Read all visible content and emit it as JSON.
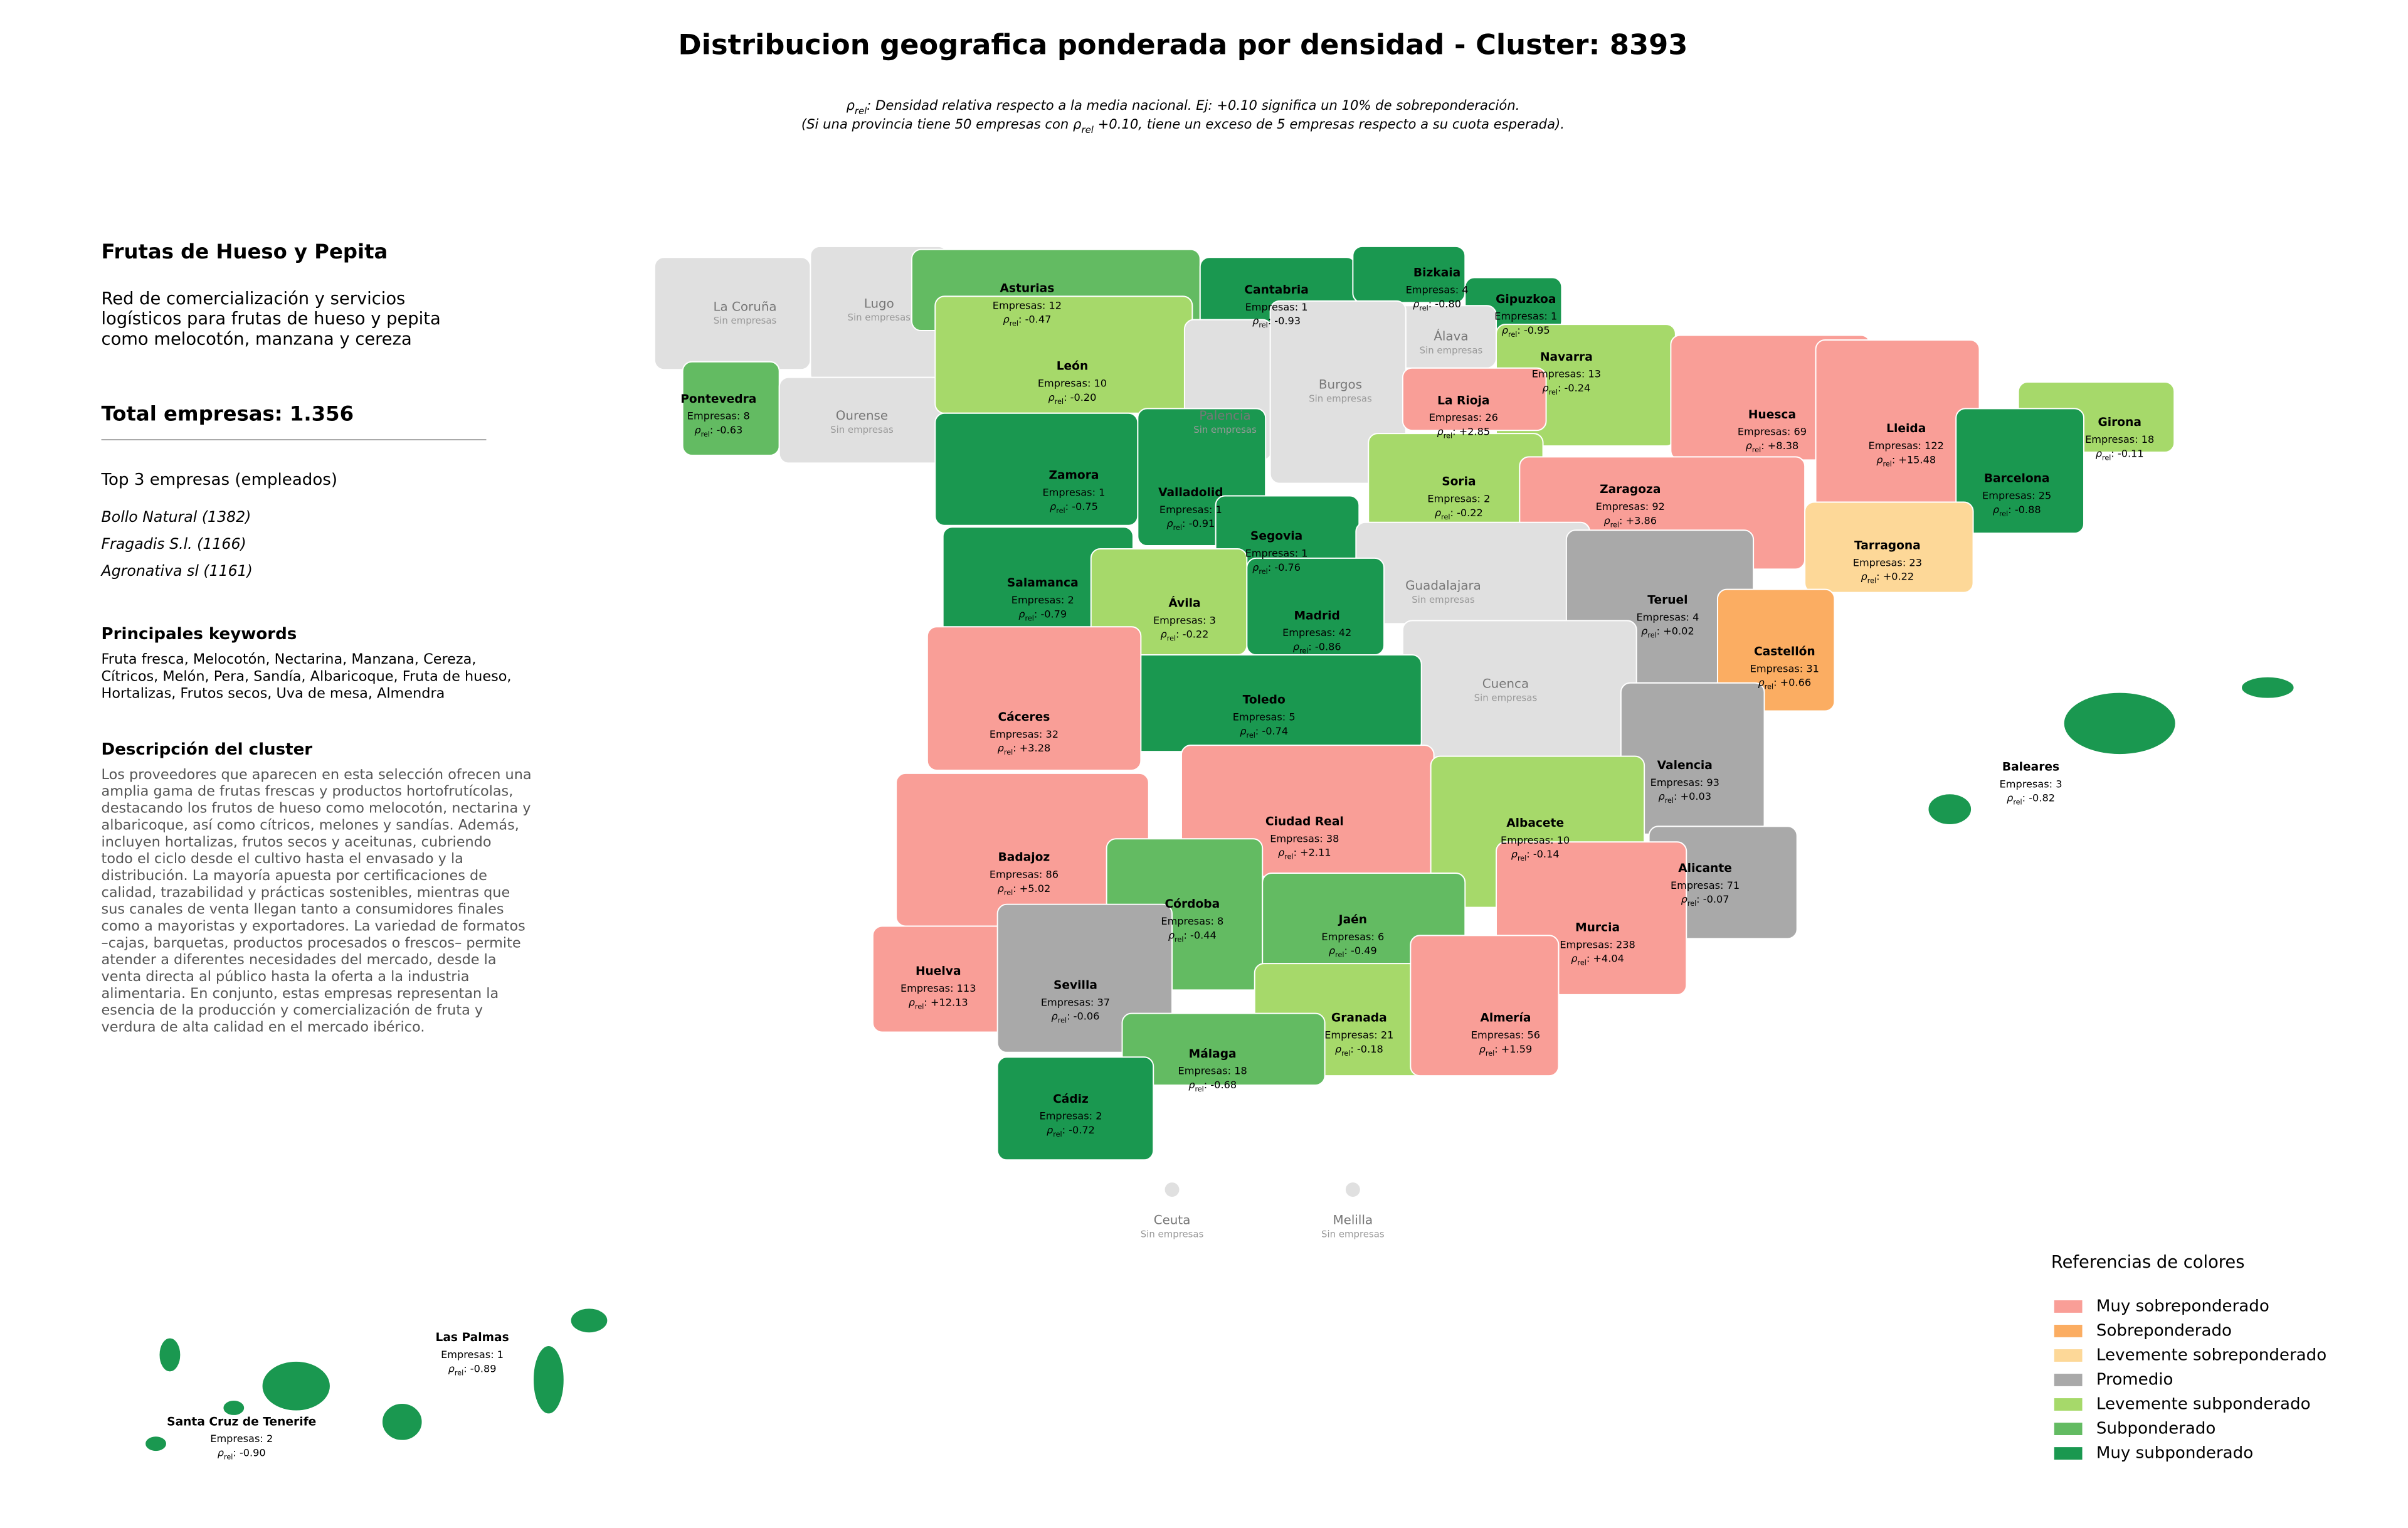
{
  "title": "Distribucion geografica ponderada por densidad - Cluster: 8393",
  "subtitle": [
    [
      "ρ",
      "rel",
      ": Densidad relativa respecto a la media nacional. Ej: +0.10 significa un 10% de sobreponderación."
    ],
    [
      "(Si una provincia tiene 50 empresas con ρ",
      "rel",
      " +0.10, tiene un exceso de 5 empresas respecto a su cuota esperada)."
    ]
  ],
  "panel": {
    "heading": "Frutas de Hueso y Pepita",
    "intro": [
      "Red de comercialización y servicios",
      "logísticos para frutas de hueso y pepita",
      "como melocotón, manzana y cereza"
    ],
    "total": "Total empresas: 1.356",
    "top_title": "Top 3 empresas (empleados)",
    "top": [
      "Bollo Natural (1382)",
      "Fragadis S.l. (1166)",
      "Agronativa sl (1161)"
    ],
    "keywords_title": "Principales keywords",
    "keywords": [
      "Fruta fresca, Melocotón, Nectarina, Manzana, Cereza,",
      "Cítricos, Melón, Pera, Sandía, Albaricoque, Fruta de hueso,",
      "Hortalizas, Frutos secos, Uva de mesa, Almendra"
    ],
    "description_title": "Descripción del cluster",
    "description": [
      "Los proveedores que aparecen en esta selección ofrecen una",
      "amplia gama de frutas frescas y productos hortofrutícolas,",
      "destacando los frutos de hueso como melocotón, nectarina y",
      "albaricoque, así como cítricos, melones y sandías. Además,",
      "incluyen hortalizas, frutos secos y aceitunas, cubriendo",
      "todo el ciclo desde el cultivo hasta el envasado y la",
      "distribución. La mayoría apuesta por certificaciones de",
      "calidad, trazabilidad y prácticas sostenibles, mientras que",
      "sus canales de venta llegan tanto a consumidores finales",
      "como a mayoristas y exportadores. La variedad de formatos",
      "–cajas, barquetas, productos procesados o frescos– permite",
      "atender a diferentes necesidades del mercado, desde la",
      "venta directa al público hasta la oferta a la industria",
      "alimentaria. En conjunto, estas empresas representan la",
      "esencia de la producción y comercialización de fruta y",
      "verdura de alta calidad en el mercado ibérico."
    ]
  },
  "map": {
    "companies_prefix": "Empresas",
    "rho_symbol": "ρ",
    "rho_subscript": "rel",
    "separator": ": ",
    "no_companies_label": "Sin empresas",
    "no_companies_color": "#e0e0e0",
    "provinces": [
      {
        "name": "La Coruña"
      },
      {
        "name": "Lugo"
      },
      {
        "name": "Asturias",
        "companies": 12,
        "rho": -0.47,
        "rho_label": "-0.47",
        "category": 5
      },
      {
        "name": "Cantabria",
        "companies": 1,
        "rho": -0.93,
        "rho_label": "-0.93",
        "category": 6
      },
      {
        "name": "Bizkaia",
        "companies": 4,
        "rho": -0.8,
        "rho_label": "-0.80",
        "category": 6
      },
      {
        "name": "Gipuzkoa",
        "companies": 1,
        "rho": -0.95,
        "rho_label": "-0.95",
        "category": 6
      },
      {
        "name": "Álava"
      },
      {
        "name": "Navarra",
        "companies": 13,
        "rho": -0.24,
        "rho_label": "-0.24",
        "category": 4
      },
      {
        "name": "Pontevedra",
        "companies": 8,
        "rho": -0.63,
        "rho_label": "-0.63",
        "category": 5
      },
      {
        "name": "Ourense"
      },
      {
        "name": "León",
        "companies": 10,
        "rho": -0.2,
        "rho_label": "-0.20",
        "category": 4
      },
      {
        "name": "Palencia"
      },
      {
        "name": "Burgos"
      },
      {
        "name": "La Rioja",
        "companies": 26,
        "rho": 2.85,
        "rho_label": "+2.85",
        "category": 0
      },
      {
        "name": "Huesca",
        "companies": 69,
        "rho": 8.38,
        "rho_label": "+8.38",
        "category": 0
      },
      {
        "name": "Lleida",
        "companies": 122,
        "rho": 15.48,
        "rho_label": "+15.48",
        "category": 0
      },
      {
        "name": "Girona",
        "companies": 18,
        "rho": -0.11,
        "rho_label": "-0.11",
        "category": 4
      },
      {
        "name": "Barcelona",
        "companies": 25,
        "rho": -0.88,
        "rho_label": "-0.88",
        "category": 6
      },
      {
        "name": "Zamora",
        "companies": 1,
        "rho": -0.75,
        "rho_label": "-0.75",
        "category": 6
      },
      {
        "name": "Valladolid",
        "companies": 1,
        "rho": -0.91,
        "rho_label": "-0.91",
        "category": 6
      },
      {
        "name": "Soria",
        "companies": 2,
        "rho": -0.22,
        "rho_label": "-0.22",
        "category": 4
      },
      {
        "name": "Zaragoza",
        "companies": 92,
        "rho": 3.86,
        "rho_label": "+3.86",
        "category": 0
      },
      {
        "name": "Segovia",
        "companies": 1,
        "rho": -0.76,
        "rho_label": "-0.76",
        "category": 6
      },
      {
        "name": "Tarragona",
        "companies": 23,
        "rho": 0.22,
        "rho_label": "+0.22",
        "category": 2
      },
      {
        "name": "Salamanca",
        "companies": 2,
        "rho": -0.79,
        "rho_label": "-0.79",
        "category": 6
      },
      {
        "name": "Guadalajara"
      },
      {
        "name": "Teruel",
        "companies": 4,
        "rho": 0.02,
        "rho_label": "+0.02",
        "category": 3
      },
      {
        "name": "Ávila",
        "companies": 3,
        "rho": -0.22,
        "rho_label": "-0.22",
        "category": 4
      },
      {
        "name": "Madrid",
        "companies": 42,
        "rho": -0.86,
        "rho_label": "-0.86",
        "category": 6
      },
      {
        "name": "Castellón",
        "companies": 31,
        "rho": 0.66,
        "rho_label": "+0.66",
        "category": 1
      },
      {
        "name": "Cuenca"
      },
      {
        "name": "Toledo",
        "companies": 5,
        "rho": -0.74,
        "rho_label": "-0.74",
        "category": 6
      },
      {
        "name": "Cáceres",
        "companies": 32,
        "rho": 3.28,
        "rho_label": "+3.28",
        "category": 0
      },
      {
        "name": "Valencia",
        "companies": 93,
        "rho": 0.03,
        "rho_label": "+0.03",
        "category": 3
      },
      {
        "name": "Baleares",
        "companies": 3,
        "rho": -0.82,
        "rho_label": "-0.82",
        "category": 6
      },
      {
        "name": "Ciudad Real",
        "companies": 38,
        "rho": 2.11,
        "rho_label": "+2.11",
        "category": 0
      },
      {
        "name": "Albacete",
        "companies": 10,
        "rho": -0.14,
        "rho_label": "-0.14",
        "category": 4
      },
      {
        "name": "Badajoz",
        "companies": 86,
        "rho": 5.02,
        "rho_label": "+5.02",
        "category": 0
      },
      {
        "name": "Alicante",
        "companies": 71,
        "rho": -0.07,
        "rho_label": "-0.07",
        "category": 3
      },
      {
        "name": "Córdoba",
        "companies": 8,
        "rho": -0.44,
        "rho_label": "-0.44",
        "category": 5
      },
      {
        "name": "Jaén",
        "companies": 6,
        "rho": -0.49,
        "rho_label": "-0.49",
        "category": 5
      },
      {
        "name": "Murcia",
        "companies": 238,
        "rho": 4.04,
        "rho_label": "+4.04",
        "category": 0
      },
      {
        "name": "Huelva",
        "companies": 113,
        "rho": 12.13,
        "rho_label": "+12.13",
        "category": 0
      },
      {
        "name": "Sevilla",
        "companies": 37,
        "rho": -0.06,
        "rho_label": "-0.06",
        "category": 3
      },
      {
        "name": "Granada",
        "companies": 21,
        "rho": -0.18,
        "rho_label": "-0.18",
        "category": 4
      },
      {
        "name": "Almería",
        "companies": 56,
        "rho": 1.59,
        "rho_label": "+1.59",
        "category": 0
      },
      {
        "name": "Málaga",
        "companies": 18,
        "rho": -0.68,
        "rho_label": "-0.68",
        "category": 5
      },
      {
        "name": "Cádiz",
        "companies": 2,
        "rho": -0.72,
        "rho_label": "-0.72",
        "category": 6
      },
      {
        "name": "Ceuta"
      },
      {
        "name": "Melilla"
      },
      {
        "name": "Las Palmas",
        "companies": 1,
        "rho": -0.89,
        "rho_label": "-0.89",
        "category": 6
      },
      {
        "name": "Santa Cruz de Tenerife",
        "companies": 2,
        "rho": -0.9,
        "rho_label": "-0.90",
        "category": 6
      }
    ]
  },
  "legend": {
    "title": "Referencias de colores",
    "items": [
      {
        "name": "Muy sobreponderado",
        "color": "#f99e97"
      },
      {
        "name": "Sobreponderado",
        "color": "#fbad62"
      },
      {
        "name": "Levemente sobreponderado",
        "color": "#fdd898"
      },
      {
        "name": "Promedio",
        "color": "#a9a9a9"
      },
      {
        "name": "Levemente subponderado",
        "color": "#a6d96a"
      },
      {
        "name": "Subponderado",
        "color": "#63bb62"
      },
      {
        "name": "Muy subponderado",
        "color": "#1a9850"
      }
    ]
  }
}
